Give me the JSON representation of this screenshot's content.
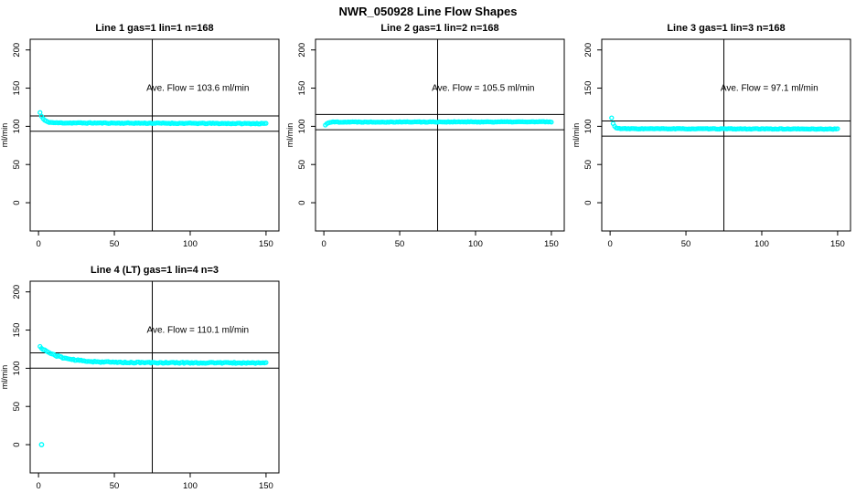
{
  "page": {
    "title": "NWR_050928  Line Flow Shapes"
  },
  "chart_data": [
    {
      "type": "scatter",
      "title": "Line 1 gas=1 lin=1 n=168",
      "annotation": "Ave. Flow =  103.6  ml/min",
      "ave_flow_ml_min": 103.6,
      "n": 168,
      "xlabel": "",
      "ylabel": "ml/min",
      "xlim": [
        -5.5,
        158.5
      ],
      "ylim": [
        -37,
        214
      ],
      "xticks": [
        0,
        50,
        100,
        150
      ],
      "yticks": [
        0,
        50,
        100,
        150,
        200
      ],
      "grid": false,
      "legend": "none",
      "vline_x": 75,
      "hlines_y": [
        113.6,
        93.6
      ],
      "marker": "open-circle",
      "marker_color": "#00FFFF",
      "series_model": {
        "x_start": 1,
        "x_end": 150,
        "y_initial": 118,
        "y_steady": 104.6,
        "decay_tau": 2.2,
        "drift": -1.0,
        "jitter": 0.5,
        "seed": 11
      },
      "outliers": []
    },
    {
      "type": "scatter",
      "title": "Line 2 gas=1 lin=2 n=168",
      "annotation": "Ave. Flow =  105.5  ml/min",
      "ave_flow_ml_min": 105.5,
      "n": 168,
      "xlabel": "",
      "ylabel": "ml/min",
      "xlim": [
        -5.5,
        158.5
      ],
      "ylim": [
        -37,
        214
      ],
      "xticks": [
        0,
        50,
        100,
        150
      ],
      "yticks": [
        0,
        50,
        100,
        150,
        200
      ],
      "grid": false,
      "legend": "none",
      "vline_x": 75,
      "hlines_y": [
        115.5,
        95.5
      ],
      "marker": "open-circle",
      "marker_color": "#00FFFF",
      "series_model": {
        "x_start": 1,
        "x_end": 150,
        "y_initial": 101.5,
        "y_steady": 105.7,
        "decay_tau": 1.3,
        "drift": 0.2,
        "jitter": 0.45,
        "seed": 22
      },
      "outliers": []
    },
    {
      "type": "scatter",
      "title": "Line 3 gas=1 lin=3 n=168",
      "annotation": "Ave. Flow =  97.1  ml/min",
      "ave_flow_ml_min": 97.1,
      "n": 168,
      "xlabel": "",
      "ylabel": "ml/min",
      "xlim": [
        -5.5,
        158.5
      ],
      "ylim": [
        -37,
        214
      ],
      "xticks": [
        0,
        50,
        100,
        150
      ],
      "yticks": [
        0,
        50,
        100,
        150,
        200
      ],
      "grid": false,
      "legend": "none",
      "vline_x": 75,
      "hlines_y": [
        107.1,
        87.1
      ],
      "marker": "open-circle",
      "marker_color": "#00FFFF",
      "series_model": {
        "x_start": 1,
        "x_end": 150,
        "y_initial": 111,
        "y_steady": 96.9,
        "decay_tau": 1.3,
        "drift": -0.4,
        "jitter": 0.4,
        "seed": 33
      },
      "outliers": []
    },
    {
      "type": "scatter",
      "title": "Line 4 (LT) gas=1 lin=4 n=3",
      "annotation": "Ave. Flow =  110.1  ml/min",
      "ave_flow_ml_min": 110.1,
      "n": 3,
      "xlabel": "",
      "ylabel": "ml/min",
      "xlim": [
        -5.5,
        158.5
      ],
      "ylim": [
        -37,
        214
      ],
      "xticks": [
        0,
        50,
        100,
        150
      ],
      "yticks": [
        0,
        50,
        100,
        150,
        200
      ],
      "grid": false,
      "legend": "none",
      "vline_x": 75,
      "hlines_y": [
        120.1,
        100.1
      ],
      "marker": "open-circle",
      "marker_color": "#00FFFF",
      "series_model": {
        "x_start": 1,
        "x_end": 150,
        "y_initial": 128,
        "y_steady": 107.6,
        "decay_tau": 13,
        "drift": -0.6,
        "jitter": 0.75,
        "seed": 44
      },
      "outliers": [
        [
          2,
          0
        ]
      ]
    }
  ]
}
